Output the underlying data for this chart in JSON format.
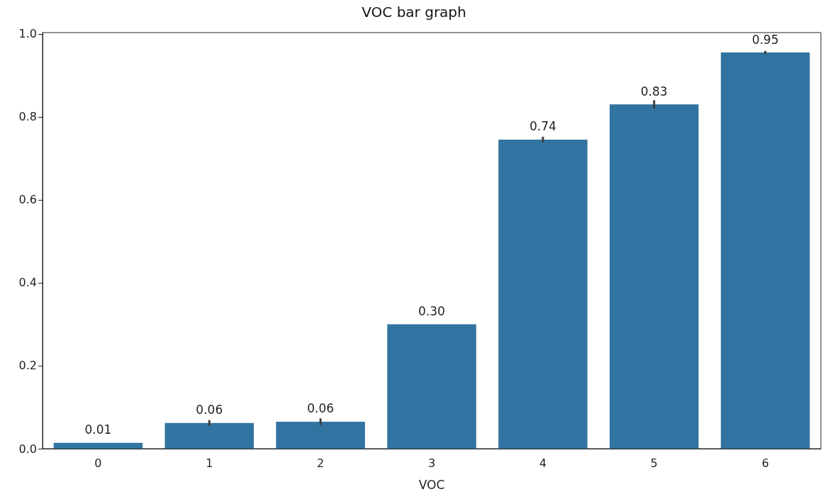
{
  "chart_data": {
    "type": "bar",
    "title": "VOC bar graph",
    "xlabel": "VOC",
    "categories": [
      "0",
      "1",
      "2",
      "3",
      "4",
      "5",
      "6"
    ],
    "values": [
      0.014,
      0.062,
      0.065,
      0.3,
      0.745,
      0.83,
      0.955
    ],
    "errors": [
      null,
      0.007,
      0.008,
      null,
      0.007,
      0.01,
      0.004
    ],
    "value_labels": [
      "0.01",
      "0.06",
      "0.06",
      "0.30",
      "0.74",
      "0.83",
      "0.95"
    ],
    "color": "#3274a1",
    "ylim": [
      0,
      1.003
    ],
    "yticks": [
      {
        "value": 0,
        "label": "0.0"
      },
      {
        "value": 0.2,
        "label": "0.2"
      },
      {
        "value": 0.4,
        "label": "0.4"
      },
      {
        "value": 0.6,
        "label": "0.6"
      },
      {
        "value": 0.8,
        "label": "0.8"
      },
      {
        "value": 1,
        "label": "1.0"
      }
    ],
    "grid": false
  }
}
